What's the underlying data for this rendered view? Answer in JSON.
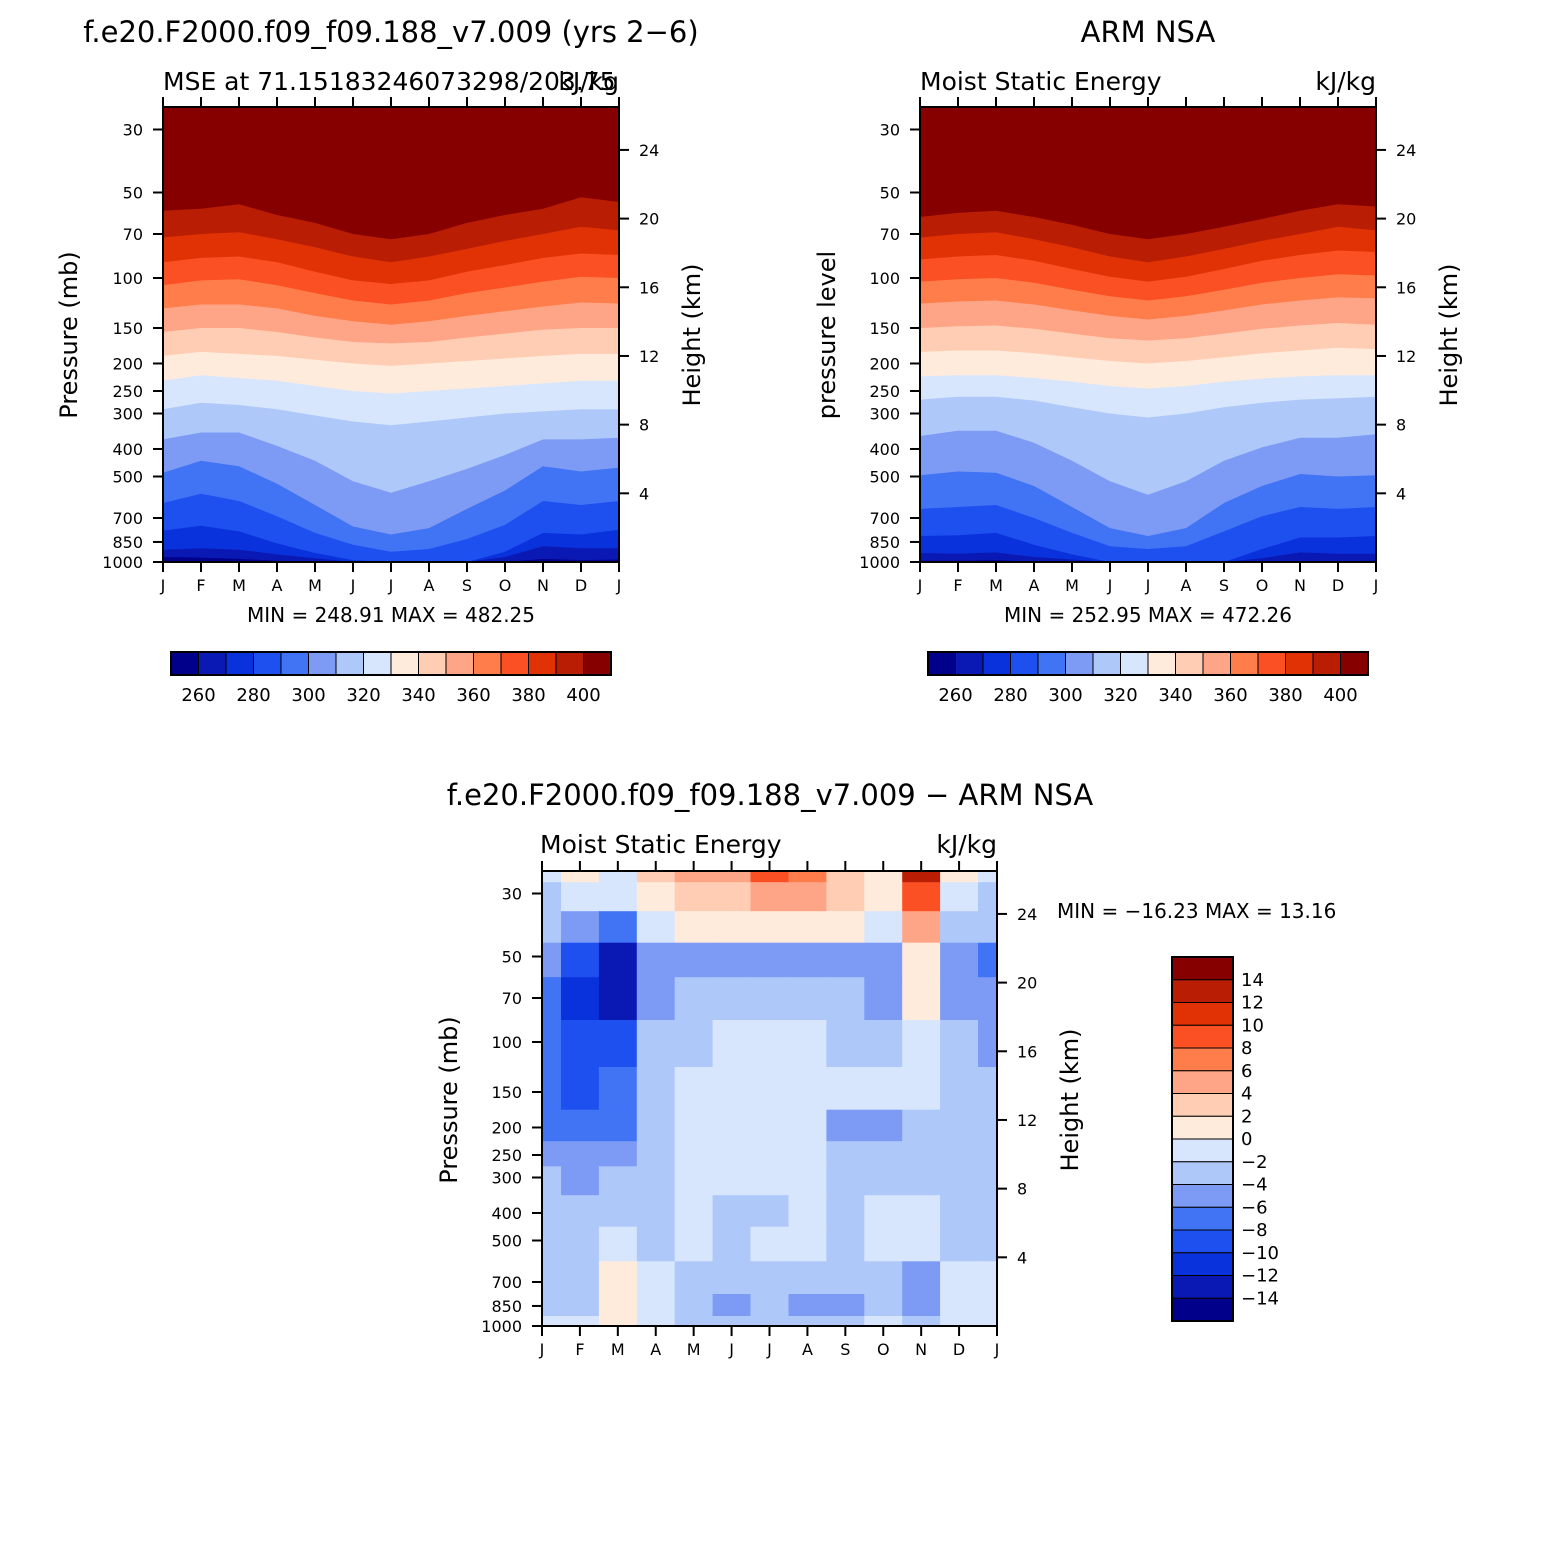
{
  "colors": {
    "mse_scale": [
      "#00008b",
      "#0a19b4",
      "#0a32dc",
      "#1e50f0",
      "#4173f5",
      "#7d9bf5",
      "#afc8fa",
      "#d7e6fc",
      "#ffebdc",
      "#ffcdb4",
      "#ffa587",
      "#ff7d4b",
      "#fa5023",
      "#e13205",
      "#b91e05",
      "#870000"
    ],
    "diff_scale": [
      "#00008b",
      "#0a19b4",
      "#0a32dc",
      "#1e50f0",
      "#4173f5",
      "#7d9bf5",
      "#afc8fa",
      "#d7e6fc",
      "#ffebdc",
      "#ffcdb4",
      "#ffa587",
      "#ff7d4b",
      "#fa5023",
      "#e13205",
      "#b91e05",
      "#870000"
    ]
  },
  "panels": {
    "model": {
      "title": "f.e20.F2000.f09_f09.188_v7.009 (yrs 2−6)",
      "left_label": "MSE at 71.15183246073298/203.75",
      "right_label": "kJ/kg",
      "ylabel": "Pressure (mb)",
      "y2label": "Height (km)",
      "minmax": "MIN =  248.91  MAX =  482.25"
    },
    "obs": {
      "title": "ARM NSA",
      "left_label": "Moist Static Energy",
      "right_label": "kJ/kg",
      "ylabel": "pressure level",
      "y2label": "Height (km)",
      "minmax": "MIN =  252.95  MAX =  472.26"
    },
    "diff": {
      "title": "f.e20.F2000.f09_f09.188_v7.009 − ARM NSA",
      "left_label": "Moist Static Energy",
      "right_label": "kJ/kg",
      "ylabel": "Pressure (mb)",
      "y2label": "Height (km)",
      "minmax": "MIN = −16.23  MAX =   13.16"
    }
  },
  "chart_data": [
    {
      "type": "heatmap",
      "name": "model",
      "title": "f.e20.F2000.f09_f09.188_v7.009 (yrs 2−6)",
      "x": [
        "J",
        "F",
        "M",
        "A",
        "M",
        "J",
        "J",
        "A",
        "S",
        "O",
        "N",
        "D",
        "J"
      ],
      "y_pressure": [
        "30",
        "50",
        "70",
        "100",
        "150",
        "200",
        "250",
        "300",
        "400",
        "500",
        "700",
        "850",
        "1000"
      ],
      "y_height": [
        "24",
        "20",
        "16",
        "12",
        "8",
        "4"
      ],
      "boundaries_hPa": [
        [
          960,
          965,
          975,
          990,
          1000,
          1000,
          1000,
          1000,
          1000,
          1000,
          975,
          985,
          980
        ],
        [
          905,
          895,
          905,
          940,
          970,
          1000,
          1000,
          1000,
          1000,
          960,
          880,
          895,
          895
        ],
        [
          775,
          745,
          780,
          860,
          930,
          985,
          1000,
          1000,
          1000,
          920,
          790,
          800,
          770
        ],
        [
          620,
          575,
          610,
          690,
          790,
          870,
          920,
          900,
          830,
          740,
          610,
          630,
          610
        ],
        [
          485,
          440,
          460,
          530,
          630,
          750,
          800,
          760,
          650,
          560,
          460,
          480,
          465
        ],
        [
          370,
          350,
          350,
          390,
          440,
          520,
          570,
          520,
          470,
          420,
          370,
          370,
          365
        ],
        [
          290,
          275,
          280,
          290,
          305,
          320,
          330,
          320,
          310,
          300,
          295,
          290,
          290
        ],
        [
          230,
          220,
          225,
          230,
          240,
          250,
          255,
          250,
          245,
          240,
          235,
          230,
          230
        ],
        [
          188,
          182,
          185,
          188,
          194,
          200,
          204,
          200,
          196,
          192,
          188,
          185,
          185
        ],
        [
          155,
          150,
          150,
          155,
          162,
          168,
          170,
          168,
          162,
          157,
          152,
          150,
          150
        ],
        [
          128,
          124,
          124,
          128,
          136,
          142,
          146,
          142,
          136,
          131,
          126,
          122,
          123
        ],
        [
          106,
          102,
          101,
          106,
          113,
          120,
          124,
          120,
          113,
          108,
          103,
          99,
          100
        ],
        [
          88,
          85,
          84,
          88,
          95,
          102,
          105,
          102,
          95,
          90,
          85,
          82,
          83
        ],
        [
          72,
          70,
          69,
          73,
          78,
          84,
          88,
          84,
          79,
          74,
          70,
          66,
          68
        ],
        [
          58,
          57,
          55,
          60,
          64,
          70,
          73,
          70,
          64,
          60,
          57,
          52,
          54
        ]
      ],
      "levels": [
        260,
        270,
        280,
        290,
        300,
        310,
        320,
        330,
        340,
        350,
        360,
        370,
        380,
        390,
        400
      ],
      "colorbar_labels": [
        "260",
        "280",
        "300",
        "320",
        "340",
        "360",
        "380",
        "400"
      ],
      "min": 248.91,
      "max": 482.25,
      "units": "kJ/kg"
    },
    {
      "type": "heatmap",
      "name": "obs",
      "title": "ARM NSA",
      "x": [
        "J",
        "F",
        "M",
        "A",
        "M",
        "J",
        "J",
        "A",
        "S",
        "O",
        "N",
        "D",
        "J"
      ],
      "y_pressure": [
        "30",
        "50",
        "70",
        "100",
        "150",
        "200",
        "250",
        "300",
        "400",
        "500",
        "700",
        "850",
        "1000"
      ],
      "y_height": [
        "24",
        "20",
        "16",
        "12",
        "8",
        "4"
      ],
      "boundaries_hPa": [
        [
          990,
          990,
          985,
          1000,
          1000,
          1000,
          1000,
          1000,
          1000,
          1000,
          1000,
          995,
          990
        ],
        [
          930,
          935,
          925,
          960,
          980,
          1000,
          1000,
          1000,
          1000,
          970,
          925,
          935,
          935
        ],
        [
          810,
          805,
          790,
          870,
          940,
          1000,
          1000,
          1000,
          1000,
          900,
          820,
          820,
          810
        ],
        [
          650,
          640,
          630,
          700,
          790,
          880,
          900,
          880,
          780,
          690,
          640,
          650,
          640
        ],
        [
          495,
          480,
          485,
          540,
          640,
          760,
          810,
          760,
          620,
          540,
          490,
          500,
          495
        ],
        [
          360,
          345,
          345,
          380,
          440,
          520,
          580,
          520,
          440,
          395,
          365,
          365,
          355
        ],
        [
          268,
          262,
          262,
          270,
          285,
          300,
          310,
          300,
          285,
          275,
          268,
          265,
          262
        ],
        [
          222,
          220,
          220,
          225,
          232,
          240,
          245,
          240,
          232,
          226,
          222,
          220,
          220
        ],
        [
          182,
          180,
          180,
          184,
          190,
          196,
          200,
          196,
          190,
          184,
          180,
          176,
          178
        ],
        [
          150,
          148,
          147,
          151,
          157,
          163,
          166,
          163,
          157,
          151,
          147,
          144,
          146
        ],
        [
          123,
          121,
          120,
          124,
          130,
          136,
          140,
          136,
          130,
          124,
          120,
          117,
          118
        ],
        [
          103,
          101,
          100,
          104,
          110,
          116,
          120,
          116,
          110,
          104,
          100,
          97,
          98
        ],
        [
          86,
          84,
          83,
          87,
          93,
          99,
          103,
          99,
          93,
          87,
          83,
          80,
          81
        ],
        [
          72,
          70,
          69,
          73,
          78,
          84,
          88,
          84,
          79,
          74,
          70,
          66,
          68
        ],
        [
          61,
          59,
          58,
          61,
          65,
          70,
          73,
          70,
          66,
          62,
          58,
          55,
          56
        ]
      ],
      "levels": [
        260,
        270,
        280,
        290,
        300,
        310,
        320,
        330,
        340,
        350,
        360,
        370,
        380,
        390,
        400
      ],
      "colorbar_labels": [
        "260",
        "280",
        "300",
        "320",
        "340",
        "360",
        "380",
        "400"
      ],
      "min": 252.95,
      "max": 472.26,
      "units": "kJ/kg"
    },
    {
      "type": "heatmap",
      "name": "difference",
      "title": "f.e20.F2000.f09_f09.188_v7.009 − ARM NSA",
      "x": [
        "J",
        "F",
        "M",
        "A",
        "M",
        "J",
        "J",
        "A",
        "S",
        "O",
        "N",
        "D",
        "J"
      ],
      "y_pressure": [
        "30",
        "50",
        "70",
        "100",
        "150",
        "200",
        "250",
        "300",
        "400",
        "500",
        "700",
        "850",
        "1000"
      ],
      "y_height": [
        "24",
        "20",
        "16",
        "12",
        "8",
        "4"
      ],
      "pressure_hPa": [
        25,
        30,
        40,
        50,
        70,
        100,
        150,
        200,
        250,
        300,
        400,
        500,
        700,
        850,
        1000
      ],
      "values": [
        [
          -1.2,
          0.5,
          -1.5,
          3,
          4,
          5,
          8,
          6,
          3,
          1,
          12,
          0.5,
          -1
        ],
        [
          -2.5,
          -2,
          -2,
          1,
          2.5,
          3.5,
          5,
          4,
          2.5,
          0.5,
          9,
          -1,
          -2.5
        ],
        [
          -4,
          -6,
          -7,
          -1,
          1,
          1,
          1.5,
          1,
          0,
          -1,
          5,
          -3.5,
          -4
        ],
        [
          -5.5,
          -9.5,
          -13,
          -6,
          -5,
          -5,
          -4.5,
          -5,
          -5,
          -6,
          1,
          -5,
          -8
        ],
        [
          -7.5,
          -11,
          -14,
          -5,
          -4,
          -4,
          -3.5,
          -3,
          -4,
          -5,
          0,
          -5,
          -6
        ],
        [
          -8,
          -10,
          -10,
          -4,
          -3,
          -2,
          -1,
          -1.5,
          -3,
          -3,
          -1,
          -4,
          -5
        ],
        [
          -7,
          -8.5,
          -8,
          -3,
          -1,
          -1,
          -0.5,
          -1,
          -2,
          -2,
          -1.5,
          -3,
          -4
        ],
        [
          -6.5,
          -7,
          -6.5,
          -4,
          -1.5,
          -1.5,
          -1,
          -2,
          -4.5,
          -5,
          -3,
          -4,
          -4
        ],
        [
          -5,
          -5.5,
          -5,
          -3,
          -1,
          -1.5,
          -1.5,
          -1.5,
          -3,
          -3.5,
          -3,
          -3,
          -3.5
        ],
        [
          -4,
          -5,
          -4,
          -3,
          -1,
          -1.5,
          -1.5,
          -1.5,
          -3,
          -3,
          -3,
          -3,
          -3
        ],
        [
          -3,
          -4,
          -3,
          -3,
          -1.5,
          -3,
          -2.5,
          -2,
          -4,
          -2,
          -1,
          -3,
          -3
        ],
        [
          -3,
          -3.5,
          -1,
          -2.5,
          -1.5,
          -3,
          -2,
          -2,
          -4,
          -2,
          -1,
          -3,
          -3
        ],
        [
          -2.5,
          -3,
          0.5,
          -2,
          -3,
          -4,
          -3,
          -3,
          -4,
          -3,
          -4.5,
          -2,
          -2
        ],
        [
          -2.5,
          -2.5,
          1,
          -2,
          -4,
          -5,
          -4,
          -5,
          -5,
          -3,
          -5,
          -1,
          -2
        ],
        [
          -2,
          -2,
          0.5,
          -2,
          -3,
          -4,
          -3,
          -3,
          -3,
          -2,
          -3,
          -1.5,
          -2
        ]
      ],
      "levels": [
        -14,
        -12,
        -10,
        -8,
        -6,
        -4,
        -2,
        0,
        2,
        4,
        6,
        8,
        10,
        12,
        14
      ],
      "colorbar_labels": [
        "14",
        "12",
        "10",
        "8",
        "6",
        "4",
        "2",
        "0",
        "−2",
        "−4",
        "−6",
        "−8",
        "−10",
        "−12",
        "−14"
      ],
      "min": -16.23,
      "max": 13.16,
      "units": "kJ/kg"
    }
  ]
}
